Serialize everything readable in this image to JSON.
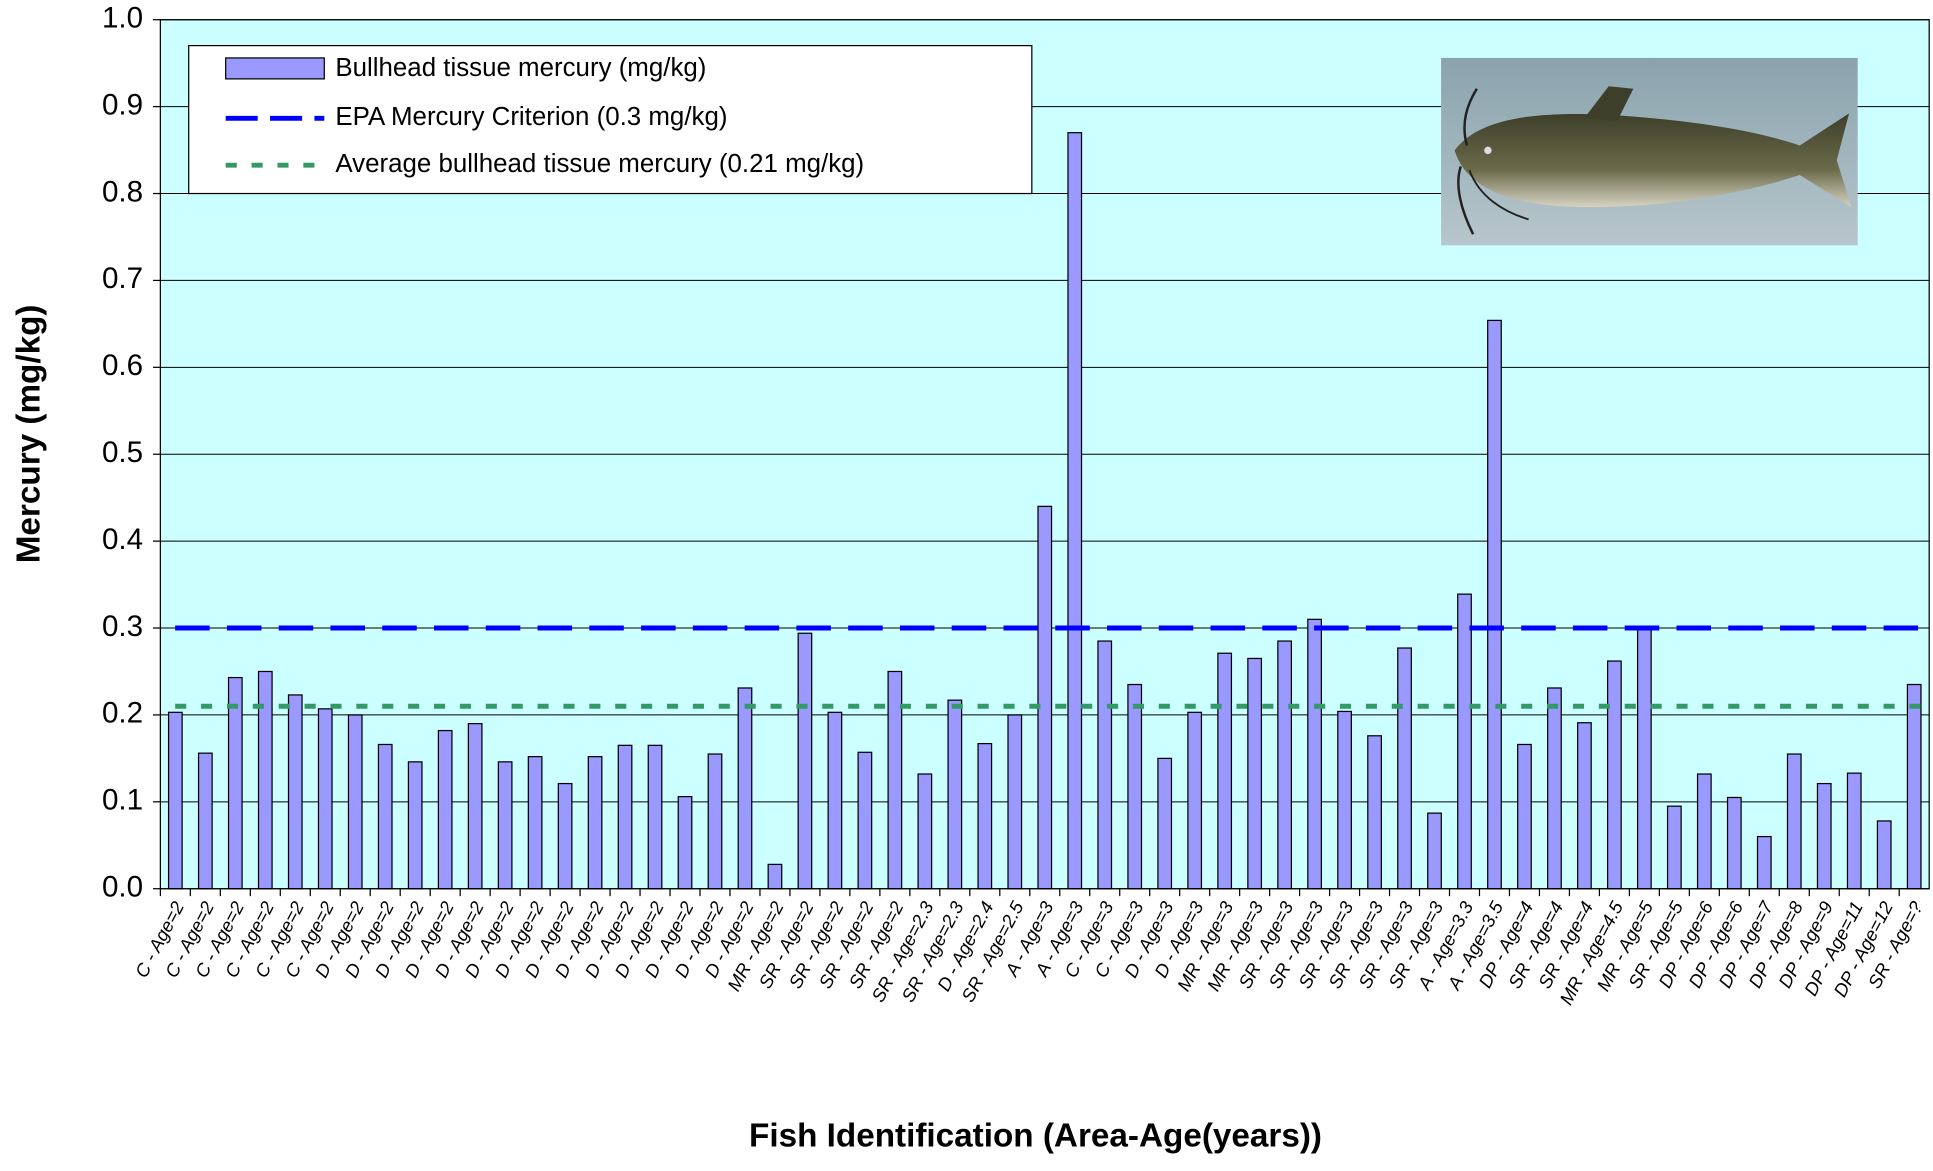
{
  "chart_data": {
    "type": "bar",
    "y_label": "Mercury (mg/kg)",
    "x_label": "Fish Identification (Area-Age(years))",
    "categories": [
      "C - Age=2",
      "C - Age=2",
      "C - Age=2",
      "C - Age=2",
      "C - Age=2",
      "C - Age=2",
      "D - Age=2",
      "D - Age=2",
      "D - Age=2",
      "D - Age=2",
      "D - Age=2",
      "D - Age=2",
      "D - Age=2",
      "D - Age=2",
      "D - Age=2",
      "D - Age=2",
      "D - Age=2",
      "D - Age=2",
      "D - Age=2",
      "D - Age=2",
      "MR - Age=2",
      "SR - Age=2",
      "SR - Age=2",
      "SR - Age=2",
      "SR - Age=2",
      "SR - Age=2.3",
      "SR - Age=2.3",
      "D - Age=2.4",
      "SR - Age=2.5",
      "A - Age=3",
      "A - Age=3",
      "C - Age=3",
      "C - Age=3",
      "D - Age=3",
      "D - Age=3",
      "MR - Age=3",
      "MR - Age=3",
      "SR - Age=3",
      "SR - Age=3",
      "SR - Age=3",
      "SR - Age=3",
      "SR - Age=3",
      "SR - Age=3",
      "A - Age=3.3",
      "A - Age=3.5",
      "DP - Age=4",
      "SR - Age=4",
      "SR - Age=4",
      "MR - Age=4.5",
      "MR - Age=5",
      "SR - Age=5",
      "DP - Age=6",
      "DP - Age=6",
      "DP - Age=7",
      "DP - Age=8",
      "DP - Age=9",
      "DP - Age=11",
      "DP - Age=12",
      "SR - Age=?"
    ],
    "series": [
      {
        "name": "Bullhead tissue mercury  (mg/kg)",
        "color": "#9999ff",
        "values": [
          0.203,
          0.156,
          0.243,
          0.25,
          0.223,
          0.207,
          0.2,
          0.166,
          0.146,
          0.182,
          0.19,
          0.146,
          0.152,
          0.121,
          0.152,
          0.165,
          0.165,
          0.106,
          0.155,
          0.231,
          0.028,
          0.294,
          0.203,
          0.157,
          0.25,
          0.132,
          0.217,
          0.167,
          0.2,
          0.44,
          0.87,
          0.285,
          0.235,
          0.15,
          0.203,
          0.271,
          0.265,
          0.285,
          0.31,
          0.204,
          0.176,
          0.277,
          0.087,
          0.339,
          0.654,
          0.166,
          0.231,
          0.191,
          0.262,
          0.3,
          0.095,
          0.132,
          0.105,
          0.06,
          0.155,
          0.121,
          0.133,
          0.078,
          0.235
        ]
      }
    ],
    "reference_lines": [
      {
        "name": "EPA Mercury Criterion (0.3 mg/kg)",
        "value": 0.3,
        "color": "#0000ff"
      },
      {
        "name": "Average bullhead tissue mercury (0.21 mg/kg)",
        "value": 0.21,
        "color": "#339966"
      }
    ],
    "ylim": [
      0,
      1
    ],
    "yticks": [
      {
        "value": 0,
        "label": "0.0"
      },
      0.1,
      0.2,
      0.3,
      0.4,
      0.5,
      0.6,
      0.7,
      0.8,
      0.9,
      {
        "value": 1,
        "label": "1.0"
      }
    ],
    "grid": true,
    "legend": "upper left"
  }
}
